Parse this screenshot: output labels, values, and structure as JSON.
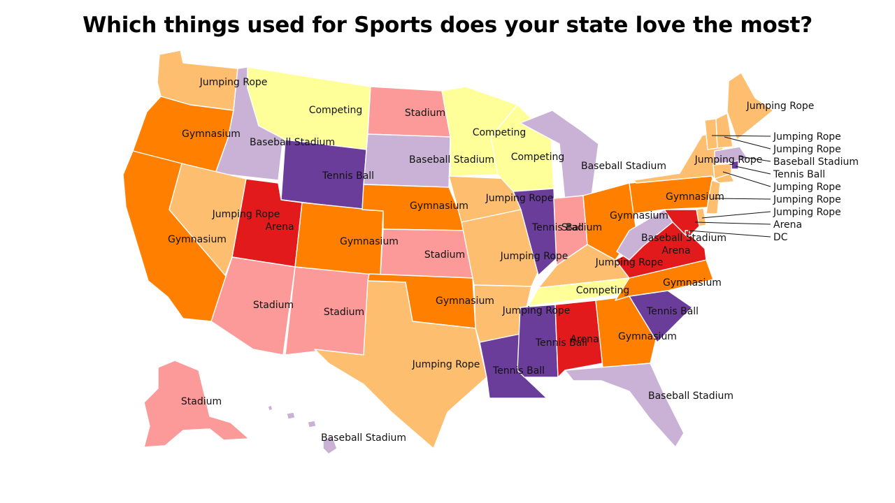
{
  "title": "Which things used for Sports does your state love the most?",
  "colors": {
    "Jumping Rope": "#fdbe6f",
    "Competing": "#ffff99",
    "Stadium": "#fb9a99",
    "Baseball Stadium": "#cab2d6",
    "Gymnasium": "#ff7f00",
    "Tennis Ball": "#6a3d9a",
    "Arena": "#e31a1c"
  },
  "states": [
    {
      "id": "WA",
      "value": "Jumping Rope"
    },
    {
      "id": "OR",
      "value": "Gymnasium"
    },
    {
      "id": "CA",
      "value": "Gymnasium"
    },
    {
      "id": "ID",
      "value": "Baseball Stadium"
    },
    {
      "id": "NV",
      "value": "Jumping Rope"
    },
    {
      "id": "MT",
      "value": "Competing"
    },
    {
      "id": "WY",
      "value": "Tennis Ball"
    },
    {
      "id": "UT",
      "value": "Arena"
    },
    {
      "id": "AZ",
      "value": "Stadium"
    },
    {
      "id": "NM",
      "value": "Stadium"
    },
    {
      "id": "CO",
      "value": "Gymnasium"
    },
    {
      "id": "ND",
      "value": "Stadium"
    },
    {
      "id": "SD",
      "value": "Baseball Stadium"
    },
    {
      "id": "NE",
      "value": "Gymnasium"
    },
    {
      "id": "KS",
      "value": "Stadium"
    },
    {
      "id": "OK",
      "value": "Gymnasium"
    },
    {
      "id": "TX",
      "value": "Jumping Rope"
    },
    {
      "id": "MN",
      "value": "Competing"
    },
    {
      "id": "IA",
      "value": "Jumping Rope"
    },
    {
      "id": "MO",
      "value": "Jumping Rope"
    },
    {
      "id": "AR",
      "value": "Jumping Rope"
    },
    {
      "id": "LA",
      "value": "Tennis Ball"
    },
    {
      "id": "WI",
      "value": "Competing"
    },
    {
      "id": "IL",
      "value": "Tennis Ball"
    },
    {
      "id": "MI",
      "value": "Baseball Stadium"
    },
    {
      "id": "IN",
      "value": "Stadium"
    },
    {
      "id": "OH",
      "value": "Gymnasium"
    },
    {
      "id": "KY",
      "value": "Jumping Rope"
    },
    {
      "id": "TN",
      "value": "Competing"
    },
    {
      "id": "MS",
      "value": "Tennis Ball"
    },
    {
      "id": "AL",
      "value": "Arena"
    },
    {
      "id": "GA",
      "value": "Gymnasium"
    },
    {
      "id": "FL",
      "value": "Baseball Stadium"
    },
    {
      "id": "SC",
      "value": "Tennis Ball"
    },
    {
      "id": "NC",
      "value": "Gymnasium"
    },
    {
      "id": "VA",
      "value": "Arena"
    },
    {
      "id": "WV",
      "value": "Baseball Stadium"
    },
    {
      "id": "PA",
      "value": "Gymnasium"
    },
    {
      "id": "NY",
      "value": "Jumping Rope"
    },
    {
      "id": "ME",
      "value": "Jumping Rope"
    },
    {
      "id": "VT",
      "value": "Jumping Rope"
    },
    {
      "id": "NH",
      "value": "Jumping Rope"
    },
    {
      "id": "MA",
      "value": "Baseball Stadium"
    },
    {
      "id": "RI",
      "value": "Tennis Ball"
    },
    {
      "id": "CT",
      "value": "Jumping Rope"
    },
    {
      "id": "NJ",
      "value": "Jumping Rope"
    },
    {
      "id": "DE",
      "value": "Jumping Rope"
    },
    {
      "id": "MD",
      "value": "Arena"
    },
    {
      "id": "DC",
      "value": "Arena"
    },
    {
      "id": "AK",
      "value": "Stadium"
    },
    {
      "id": "HI",
      "value": "Baseball Stadium"
    }
  ],
  "external_labels": [
    {
      "id": "VT",
      "text": "Jumping Rope"
    },
    {
      "id": "NH",
      "text": "Jumping Rope"
    },
    {
      "id": "MA",
      "text": "Baseball Stadium"
    },
    {
      "id": "RI",
      "text": "Tennis Ball"
    },
    {
      "id": "CT",
      "text": "Jumping Rope"
    },
    {
      "id": "NJ",
      "text": "Jumping Rope"
    },
    {
      "id": "DE",
      "text": "Jumping Rope"
    },
    {
      "id": "MD",
      "text": "Arena"
    },
    {
      "id": "DC",
      "text": "DC"
    }
  ]
}
